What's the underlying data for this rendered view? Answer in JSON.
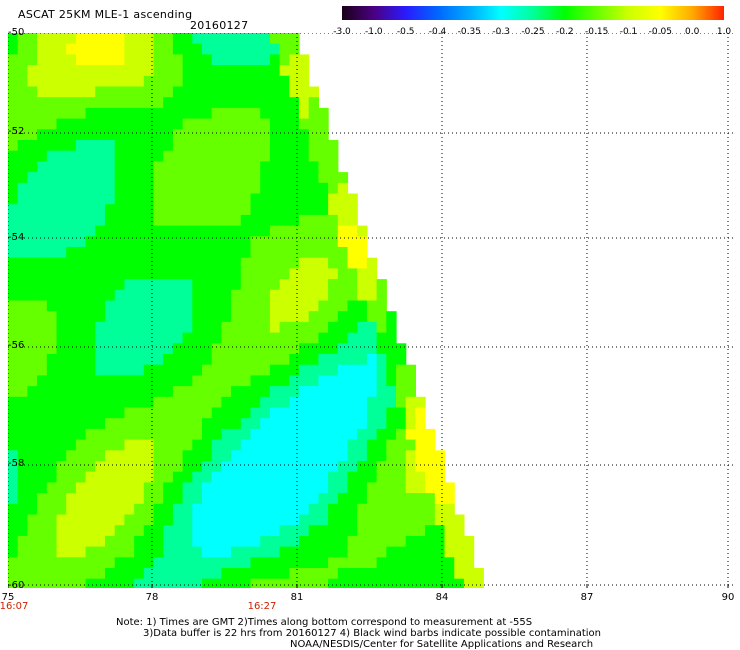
{
  "header": {
    "title": "ASCAT 25KM MLE-1 ascending",
    "date": "20160127"
  },
  "colorbar": {
    "labels": [
      "-3.0",
      "-1.0",
      "-0.5",
      "-0.4",
      "-0.35",
      "-0.3",
      "-0.25",
      "-0.2",
      "-0.15",
      "-0.1",
      "-0.05",
      "0.0",
      "1.0"
    ],
    "colors": [
      "#1a0018",
      "#4b0082",
      "#2a1aff",
      "#0066ff",
      "#00aaff",
      "#00ffff",
      "#00ff99",
      "#00ff00",
      "#66ff00",
      "#ccff00",
      "#ffff00",
      "#ffaa00",
      "#ff2200"
    ]
  },
  "map": {
    "lat_labels": [
      "-50",
      "-52",
      "-54",
      "-56",
      "-58",
      "-60"
    ],
    "lon_labels": [
      "75",
      "78",
      "81",
      "84",
      "87",
      "90"
    ],
    "time_labels": [
      "16:07",
      "16:27"
    ]
  },
  "footer": {
    "note_line1": "Note: 1) Times are GMT 2)Times along bottom correspond to measurement at -55S",
    "note_line2": "3)Data buffer is 22 hrs from 20160127 4) Black wind barbs indicate possible contamination",
    "note_line3": "NOAA/NESDIS/Center for Satellite Applications and Research"
  }
}
